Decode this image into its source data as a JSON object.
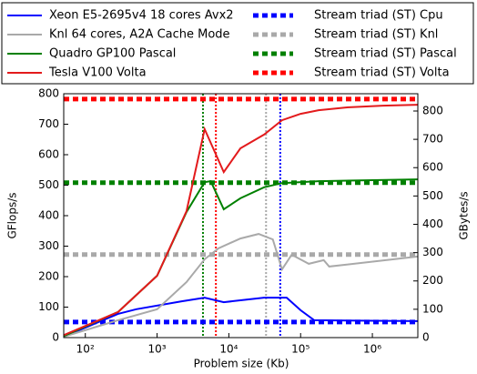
{
  "chart_data": {
    "type": "line",
    "xlabel": "Problem size (Kb)",
    "ylabel": "GFlops/s",
    "y2label": "GBytes/s",
    "xscale": "log",
    "xlim": [
      50,
      4300000
    ],
    "xticks": [
      {
        "value": 100,
        "label": "10²"
      },
      {
        "value": 1000,
        "label": "10³"
      },
      {
        "value": 10000,
        "label": "10⁴"
      },
      {
        "value": 100000,
        "label": "10⁵"
      },
      {
        "value": 1000000,
        "label": "10⁶"
      }
    ],
    "ylim": [
      0,
      800
    ],
    "yticks": [
      0,
      100,
      200,
      300,
      400,
      500,
      600,
      700,
      800
    ],
    "y2lim": [
      0,
      861
    ],
    "y2ticks": [
      0,
      100,
      200,
      300,
      400,
      500,
      600,
      700,
      800
    ],
    "series": [
      {
        "name": "Xeon E5-2695v4 18 cores Avx2",
        "color": "#0000ff",
        "x": [
          50,
          286,
          515,
          2200,
          4600,
          8500,
          31000,
          64000,
          100000,
          155000,
          4300000
        ],
        "values": [
          3,
          78,
          93,
          119,
          131,
          116,
          131,
          131,
          90,
          57,
          54
        ]
      },
      {
        "name": "Knl 64 cores, A2A Cache Mode",
        "color": "#a9a9a9",
        "x": [
          50,
          286,
          1000,
          2570,
          4600,
          7200,
          14500,
          26000,
          41000,
          55000,
          75000,
          130000,
          210000,
          250000,
          4300000
        ],
        "values": [
          3,
          57,
          93,
          182,
          257,
          293,
          325,
          340,
          322,
          224,
          272,
          242,
          254,
          233,
          266
        ]
      },
      {
        "name": "Quadro GP100 Pascal",
        "color": "#008000",
        "x": [
          50,
          286,
          1000,
          2570,
          4600,
          5600,
          8500,
          14500,
          31000,
          55000,
          178000,
          4300000
        ],
        "values": [
          5,
          84,
          203,
          412,
          510,
          513,
          421,
          457,
          493,
          507,
          513,
          519
        ]
      },
      {
        "name": "Tesla V100 Volta",
        "color": "#e31a1c",
        "x": [
          50,
          286,
          1000,
          2570,
          4600,
          8500,
          14500,
          31000,
          55000,
          100000,
          178000,
          430000,
          1400000,
          4300000
        ],
        "values": [
          8,
          84,
          203,
          415,
          684,
          543,
          621,
          666,
          713,
          734,
          746,
          755,
          761,
          764
        ]
      }
    ],
    "reference_lines": [
      {
        "name": "Stream triad (ST) Cpu",
        "color": "#0000ff",
        "axis": "y2",
        "value": 55
      },
      {
        "name": "Stream triad (ST) Knl",
        "color": "#a9a9a9",
        "axis": "y2",
        "value": 293
      },
      {
        "name": "Stream triad (ST) Pascal",
        "color": "#008000",
        "axis": "y2",
        "value": 547
      },
      {
        "name": "Stream triad (ST) Volta",
        "color": "#ff0000",
        "axis": "y2",
        "value": 842
      }
    ],
    "vlines": [
      {
        "x": 4360,
        "color": "#008000"
      },
      {
        "x": 6600,
        "color": "#ff0000"
      },
      {
        "x": 33000,
        "color": "#a9a9a9"
      },
      {
        "x": 52000,
        "color": "#0000ff"
      }
    ]
  }
}
